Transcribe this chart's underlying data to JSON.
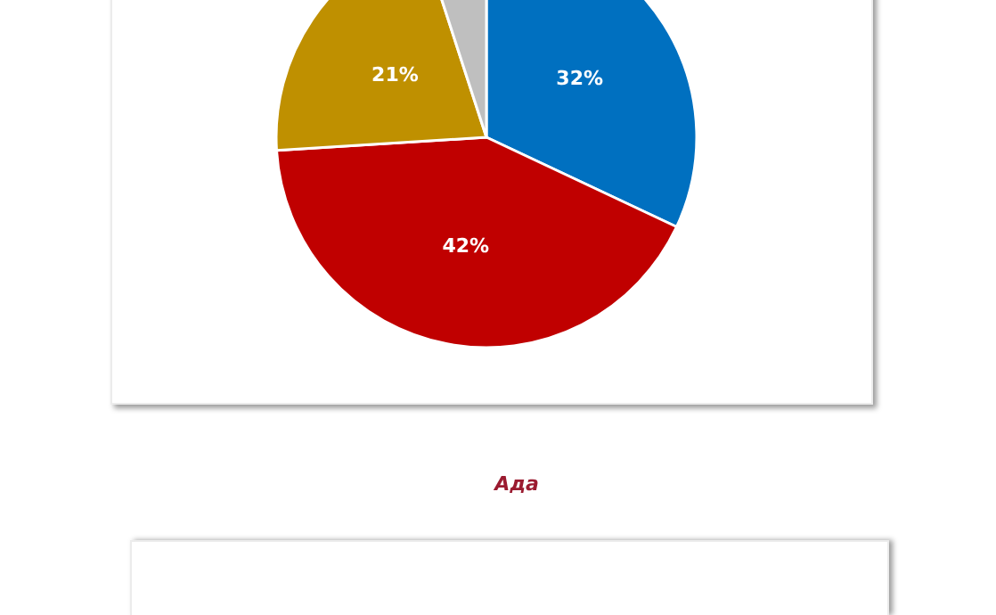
{
  "chart_data": [
    {
      "type": "pie",
      "categories": [
        null,
        null,
        null,
        null
      ],
      "values": [
        32,
        42,
        21,
        5
      ],
      "colors": [
        "#0070c0",
        "#c00000",
        "#bf9000",
        "#bfbfbf"
      ],
      "value_labels": [
        "32%",
        "42%",
        "21%",
        null
      ]
    },
    {
      "type": "other",
      "title": "Ада"
    }
  ]
}
